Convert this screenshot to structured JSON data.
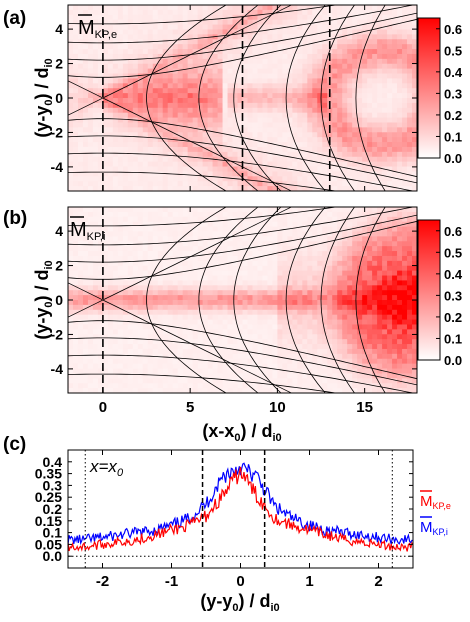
{
  "panels": {
    "a": {
      "letter": "(a)",
      "label_main": "M",
      "label_sub": "KP,e",
      "ylabel": "(y-y",
      "ylabel_sub": "0",
      "ylabel_mid": ") / d",
      "ylabel_sub2": "i0"
    },
    "b": {
      "letter": "(b)",
      "label_main": "M",
      "label_sub": "KP,i",
      "ylabel": "(y-y",
      "ylabel_sub": "0",
      "ylabel_mid": ") / d",
      "ylabel_sub2": "i0"
    },
    "c": {
      "letter": "(c)",
      "annotation": "x=x",
      "annotation_sub": "0",
      "legend_e_main": "M",
      "legend_e_sub": "KP,e",
      "legend_i_main": "M",
      "legend_i_sub": "KP,i"
    }
  },
  "shared_xlabel": {
    "pre": "(x-x",
    "sub": "0",
    "mid": ") / d",
    "sub2": "i0"
  },
  "c_xlabel": {
    "pre": "(y-y",
    "sub": "0",
    "mid": ") / d",
    "sub2": "i0"
  },
  "colors": {
    "electron": "#ff0000",
    "ion": "#0000ff",
    "colormap_low": "#ffffff",
    "colormap_high": "#ff0000"
  },
  "chart_data": [
    {
      "type": "heatmap",
      "panel": "a",
      "xlim": [
        -2,
        18
      ],
      "ylim": [
        -5.4,
        5.4
      ],
      "xticks": [
        0,
        5,
        10,
        15
      ],
      "yticks": [
        -4,
        -2,
        0,
        2,
        4
      ],
      "vertical_dashed_lines_x": [
        0,
        8,
        13
      ],
      "colorbar": {
        "range": [
          0.0,
          0.65
        ],
        "ticks": [
          "0.0",
          "0.1",
          "0.2",
          "0.3",
          "0.4",
          "0.5",
          "0.6"
        ]
      }
    },
    {
      "type": "heatmap",
      "panel": "b",
      "xlim": [
        -2,
        18
      ],
      "ylim": [
        -5.4,
        5.4
      ],
      "xticks": [
        0,
        5,
        10,
        15
      ],
      "xtick_labels": [
        "0",
        "5",
        "10",
        "15"
      ],
      "yticks": [
        -4,
        -2,
        0,
        2,
        4
      ],
      "vertical_dashed_lines_x": [
        0
      ],
      "colorbar": {
        "range": [
          0.0,
          0.65
        ],
        "ticks": [
          "0.0",
          "0.1",
          "0.2",
          "0.3",
          "0.4",
          "0.5",
          "0.6"
        ]
      }
    },
    {
      "type": "line",
      "panel": "c",
      "xlim": [
        -2.5,
        2.5
      ],
      "ylim": [
        -0.05,
        0.45
      ],
      "xticks": [
        -2,
        -1,
        0,
        1,
        2
      ],
      "yticks": [
        0.0,
        0.05,
        0.1,
        0.15,
        0.2,
        0.25,
        0.3,
        0.35,
        0.4
      ],
      "ytick_labels": [
        "0.0",
        "0.05",
        "0.1",
        "0.15",
        "0.2",
        "0.25",
        "0.3",
        "0.35",
        "0.4"
      ],
      "vertical_dashed_lines_x": [
        -0.55,
        0.35
      ],
      "vertical_dotted_lines_x": [
        -2.25,
        2.2
      ],
      "horizontal_dotted_line_y": 0.0,
      "x": [
        -2.5,
        -2.25,
        -2.0,
        -1.75,
        -1.5,
        -1.25,
        -1.0,
        -0.75,
        -0.5,
        -0.25,
        0.0,
        0.25,
        0.5,
        0.75,
        1.0,
        1.25,
        1.5,
        1.75,
        2.0,
        2.25,
        2.5
      ],
      "series": [
        {
          "values": [
            0.04,
            0.04,
            0.05,
            0.06,
            0.07,
            0.09,
            0.11,
            0.13,
            0.17,
            0.26,
            0.36,
            0.25,
            0.16,
            0.13,
            0.11,
            0.09,
            0.07,
            0.06,
            0.05,
            0.04,
            0.04
          ]
        },
        {
          "values": [
            0.07,
            0.07,
            0.08,
            0.09,
            0.1,
            0.11,
            0.13,
            0.16,
            0.22,
            0.34,
            0.38,
            0.33,
            0.21,
            0.16,
            0.13,
            0.11,
            0.1,
            0.09,
            0.08,
            0.07,
            0.07
          ]
        }
      ]
    }
  ]
}
